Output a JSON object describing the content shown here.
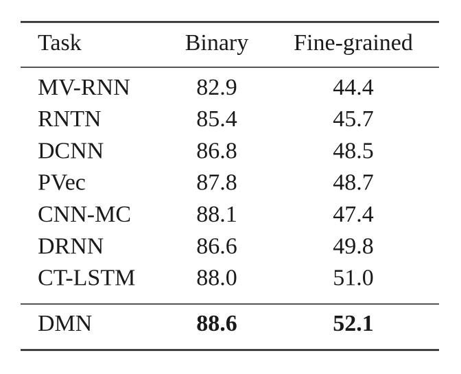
{
  "table": {
    "header": [
      "Task",
      "Binary",
      "Fine-grained"
    ],
    "rows": [
      [
        "MV-RNN",
        "82.9",
        "44.4"
      ],
      [
        "RNTN",
        "85.4",
        "45.7"
      ],
      [
        "DCNN",
        "86.8",
        "48.5"
      ],
      [
        "PVec",
        "87.8",
        "48.7"
      ],
      [
        "CNN-MC",
        "88.1",
        "47.4"
      ],
      [
        "DRNN",
        "86.6",
        "49.8"
      ],
      [
        "CT-LSTM",
        "88.0",
        "51.0"
      ]
    ],
    "summary_row": [
      "DMN",
      "88.6",
      "52.1"
    ]
  }
}
